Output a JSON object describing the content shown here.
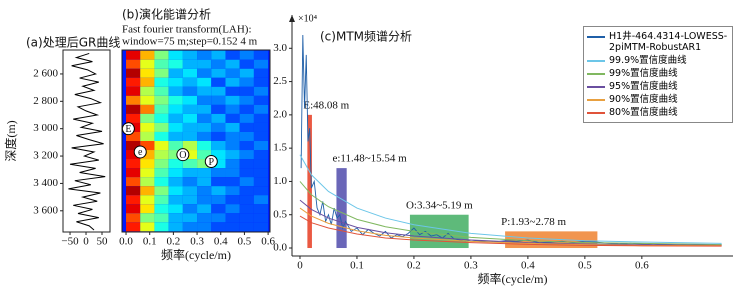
{
  "chart_data": [
    {
      "type": "line",
      "orientation": "vertical",
      "title": "(a)处理后GR曲线",
      "ylabel": "深度(m)",
      "color": "#000000",
      "depth": [
        2450,
        2480,
        2510,
        2540,
        2570,
        2600,
        2630,
        2660,
        2690,
        2720,
        2750,
        2780,
        2810,
        2840,
        2870,
        2900,
        2930,
        2960,
        2990,
        3020,
        3050,
        3080,
        3110,
        3140,
        3170,
        3200,
        3230,
        3260,
        3290,
        3320,
        3350,
        3380,
        3410,
        3440,
        3470,
        3500,
        3530,
        3560,
        3590,
        3620,
        3650,
        3680,
        3710,
        3740
      ],
      "values": [
        10,
        -30,
        20,
        -45,
        5,
        30,
        -20,
        40,
        -10,
        25,
        -35,
        15,
        45,
        -25,
        0,
        35,
        -40,
        20,
        -15,
        50,
        -30,
        10,
        55,
        -45,
        25,
        -5,
        40,
        -50,
        30,
        -20,
        60,
        -35,
        15,
        -55,
        45,
        -10,
        35,
        -40,
        20,
        -25,
        40,
        -30,
        10,
        25
      ],
      "xlim": [
        -72,
        75
      ],
      "xticks": [
        {
          "value": -50,
          "label": "−50"
        },
        0,
        50
      ],
      "ylim": [
        2425,
        3755
      ],
      "y_inverted": true,
      "yticks": [
        {
          "value": 2600,
          "label": "2 600"
        },
        {
          "value": 2800,
          "label": "2 800"
        },
        {
          "value": 3000,
          "label": "3 000"
        },
        {
          "value": 3200,
          "label": "3 200"
        },
        {
          "value": 3400,
          "label": "3 400"
        },
        {
          "value": 3600,
          "label": "3 600"
        }
      ]
    },
    {
      "type": "heatmap",
      "title": "(b)演化能谱分析",
      "subtitle": [
        "Fast fourier transform(LAH):",
        "window=75 m;step=0.152 4 m"
      ],
      "xlabel": "频率(cycle/m)",
      "colormap": "jet",
      "xlim": [
        -0.017,
        0.608
      ],
      "ylim": [
        2425,
        3755
      ],
      "y_inverted": true,
      "xticks": [
        {
          "value": 0,
          "label": "0.0"
        },
        0.1,
        0.2,
        0.3,
        0.4,
        0.5,
        0.6
      ],
      "x_edges": [
        0,
        0.06,
        0.12,
        0.18,
        0.24,
        0.3,
        0.36,
        0.42,
        0.48,
        0.54,
        0.6
      ],
      "y_edges": [
        2430,
        2496,
        2562,
        2628,
        2694,
        2760,
        2826,
        2892,
        2958,
        3024,
        3090,
        3156,
        3222,
        3288,
        3354,
        3420,
        3486,
        3552,
        3618,
        3684,
        3750
      ],
      "z": [
        [
          0.9,
          0.7,
          0.5,
          0.35,
          0.3,
          0.25,
          0.3,
          0.2,
          0.25,
          0.2
        ],
        [
          0.8,
          0.6,
          0.45,
          0.4,
          0.3,
          0.3,
          0.25,
          0.3,
          0.2,
          0.25
        ],
        [
          0.95,
          0.65,
          0.5,
          0.3,
          0.35,
          0.25,
          0.3,
          0.25,
          0.3,
          0.2
        ],
        [
          0.85,
          0.7,
          0.4,
          0.35,
          0.3,
          0.35,
          0.2,
          0.3,
          0.25,
          0.2
        ],
        [
          0.9,
          0.55,
          0.45,
          0.3,
          0.25,
          0.3,
          0.3,
          0.2,
          0.2,
          0.25
        ],
        [
          0.75,
          0.6,
          0.5,
          0.4,
          0.35,
          0.25,
          0.25,
          0.3,
          0.25,
          0.2
        ],
        [
          0.95,
          0.75,
          0.45,
          0.35,
          0.3,
          0.3,
          0.2,
          0.25,
          0.2,
          0.25
        ],
        [
          0.85,
          0.5,
          0.4,
          0.3,
          0.35,
          0.25,
          0.3,
          0.2,
          0.25,
          0.2
        ],
        [
          0.9,
          0.6,
          0.5,
          0.35,
          0.3,
          0.3,
          0.25,
          0.3,
          0.2,
          0.2
        ],
        [
          0.8,
          0.55,
          0.4,
          0.3,
          0.3,
          0.25,
          0.2,
          0.25,
          0.25,
          0.2
        ],
        [
          0.95,
          0.8,
          0.6,
          0.45,
          0.55,
          0.4,
          0.3,
          0.25,
          0.2,
          0.25
        ],
        [
          0.9,
          0.7,
          0.55,
          0.5,
          0.6,
          0.45,
          0.35,
          0.3,
          0.25,
          0.2
        ],
        [
          0.85,
          0.65,
          0.5,
          0.4,
          0.45,
          0.5,
          0.35,
          0.25,
          0.2,
          0.2
        ],
        [
          0.9,
          0.6,
          0.45,
          0.35,
          0.3,
          0.3,
          0.25,
          0.25,
          0.2,
          0.2
        ],
        [
          0.8,
          0.55,
          0.4,
          0.3,
          0.25,
          0.3,
          0.2,
          0.2,
          0.25,
          0.2
        ],
        [
          0.95,
          0.7,
          0.5,
          0.35,
          0.3,
          0.25,
          0.3,
          0.25,
          0.2,
          0.2
        ],
        [
          0.85,
          0.6,
          0.45,
          0.3,
          0.3,
          0.25,
          0.25,
          0.2,
          0.2,
          0.25
        ],
        [
          0.9,
          0.65,
          0.4,
          0.35,
          0.25,
          0.3,
          0.2,
          0.25,
          0.2,
          0.2
        ],
        [
          0.8,
          0.5,
          0.45,
          0.3,
          0.3,
          0.25,
          0.25,
          0.2,
          0.2,
          0.2
        ],
        [
          0.85,
          0.6,
          0.4,
          0.3,
          0.25,
          0.25,
          0.2,
          0.2,
          0.2,
          0.2
        ]
      ],
      "annotations": [
        {
          "text": "E",
          "x": 0.01,
          "y": 3000
        },
        {
          "text": "e",
          "x": 0.06,
          "y": 3170
        },
        {
          "text": "O",
          "x": 0.24,
          "y": 3190
        },
        {
          "text": "P",
          "x": 0.36,
          "y": 3240
        }
      ]
    },
    {
      "type": "line",
      "title": "(c)MTM频谱分析",
      "xlabel": "频率(cycle/m)",
      "y_multiplier": "×10⁴",
      "xlim": [
        -0.014,
        0.76
      ],
      "ylim": [
        -0.12,
        3.5
      ],
      "xticks": [
        0,
        0.1,
        0.2,
        0.3,
        0.4,
        0.5,
        0.6
      ],
      "yticks": [
        {
          "value": 0,
          "label": "0.0"
        },
        0.5,
        {
          "value": 1,
          "label": "1.0"
        },
        1.5,
        {
          "value": 2,
          "label": "2.0"
        },
        2.5,
        {
          "value": 3,
          "label": "3.0"
        }
      ],
      "series": [
        {
          "name": "H1井-464.4314-LOWESS-2piMTM-RobustAR1",
          "color": "#1f5fa8",
          "x": [
            0.002,
            0.005,
            0.008,
            0.011,
            0.014,
            0.017,
            0.02,
            0.025,
            0.03,
            0.035,
            0.04,
            0.045,
            0.05,
            0.055,
            0.06,
            0.065,
            0.07,
            0.075,
            0.08,
            0.09,
            0.1,
            0.11,
            0.12,
            0.13,
            0.14,
            0.15,
            0.16,
            0.17,
            0.18,
            0.19,
            0.2,
            0.21,
            0.22,
            0.23,
            0.24,
            0.25,
            0.26,
            0.27,
            0.28,
            0.29,
            0.3,
            0.32,
            0.34,
            0.36,
            0.38,
            0.4,
            0.42,
            0.44,
            0.46,
            0.48,
            0.5,
            0.52,
            0.54,
            0.56,
            0.58,
            0.6,
            0.62,
            0.64,
            0.66,
            0.68,
            0.7,
            0.72,
            0.74
          ],
          "values": [
            1.2,
            3.2,
            2.1,
            2.9,
            1.6,
            1.8,
            0.9,
            1.0,
            0.6,
            0.5,
            0.7,
            0.4,
            0.5,
            0.35,
            0.6,
            0.45,
            0.5,
            0.3,
            0.4,
            0.25,
            0.3,
            0.2,
            0.28,
            0.22,
            0.18,
            0.25,
            0.15,
            0.2,
            0.17,
            0.22,
            0.3,
            0.2,
            0.25,
            0.18,
            0.2,
            0.15,
            0.22,
            0.14,
            0.12,
            0.1,
            0.12,
            0.1,
            0.09,
            0.11,
            0.1,
            0.12,
            0.08,
            0.09,
            0.1,
            0.08,
            0.1,
            0.09,
            0.07,
            0.06,
            0.07,
            0.06,
            0.05,
            0.06,
            0.05,
            0.04,
            0.05,
            0.04,
            0.05
          ]
        },
        {
          "name": "99.9%置信度曲线",
          "color": "#6cc6e8",
          "x": [
            0,
            0.02,
            0.05,
            0.1,
            0.15,
            0.2,
            0.3,
            0.4,
            0.5,
            0.6,
            0.74
          ],
          "values": [
            1.4,
            1.1,
            0.85,
            0.6,
            0.45,
            0.35,
            0.22,
            0.15,
            0.11,
            0.09,
            0.07
          ]
        },
        {
          "name": "99%置信度曲线",
          "color": "#80b860",
          "x": [
            0,
            0.02,
            0.05,
            0.1,
            0.15,
            0.2,
            0.3,
            0.4,
            0.5,
            0.6,
            0.74
          ],
          "values": [
            1.0,
            0.8,
            0.62,
            0.43,
            0.32,
            0.25,
            0.16,
            0.11,
            0.08,
            0.07,
            0.05
          ]
        },
        {
          "name": "95%置信度曲线",
          "color": "#6a4fa0",
          "x": [
            0,
            0.02,
            0.05,
            0.1,
            0.15,
            0.2,
            0.3,
            0.4,
            0.5,
            0.6,
            0.74
          ],
          "values": [
            0.72,
            0.58,
            0.45,
            0.31,
            0.23,
            0.18,
            0.12,
            0.08,
            0.06,
            0.05,
            0.04
          ]
        },
        {
          "name": "90%置信度曲线",
          "color": "#e8a040",
          "x": [
            0,
            0.02,
            0.05,
            0.1,
            0.15,
            0.2,
            0.3,
            0.4,
            0.5,
            0.6,
            0.74
          ],
          "values": [
            0.6,
            0.48,
            0.37,
            0.26,
            0.19,
            0.15,
            0.1,
            0.07,
            0.05,
            0.04,
            0.035
          ]
        },
        {
          "name": "80%置信度曲线",
          "color": "#e0533a",
          "x": [
            0,
            0.02,
            0.05,
            0.1,
            0.15,
            0.2,
            0.3,
            0.4,
            0.5,
            0.6,
            0.74
          ],
          "values": [
            0.48,
            0.38,
            0.3,
            0.21,
            0.15,
            0.12,
            0.08,
            0.055,
            0.04,
            0.033,
            0.028
          ]
        }
      ],
      "bands": [
        {
          "label": "E:48.08 m",
          "x0": 0.013,
          "x1": 0.021,
          "height": 2.0,
          "color": "#e8472e"
        },
        {
          "label": "e:11.48~15.54 m",
          "x0": 0.064,
          "x1": 0.082,
          "height": 1.2,
          "color": "#5a55b0"
        },
        {
          "label": "O:3.34~5.19 m",
          "x0": 0.193,
          "x1": 0.296,
          "height": 0.5,
          "color": "#4db36b"
        },
        {
          "label": "P:1.93~2.78 m",
          "x0": 0.36,
          "x1": 0.522,
          "height": 0.25,
          "color": "#f08a3c"
        }
      ]
    }
  ]
}
